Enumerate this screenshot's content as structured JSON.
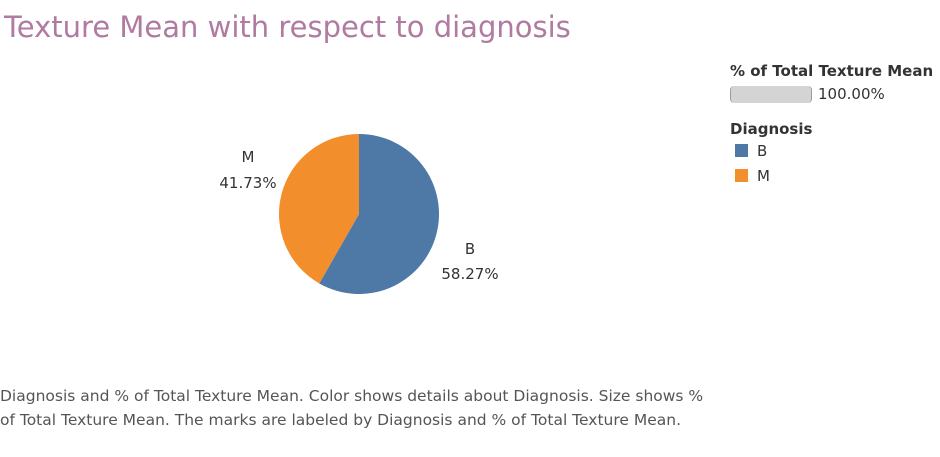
{
  "title": "Texture Mean with respect to diagnosis",
  "chart_data": {
    "type": "pie",
    "title": "Texture Mean with respect to diagnosis",
    "slices": [
      {
        "label": "B",
        "value": 58.27,
        "value_label": "58.27%",
        "color": "#4e79a7"
      },
      {
        "label": "M",
        "value": 41.73,
        "value_label": "41.73%",
        "color": "#f28e2b"
      }
    ],
    "start": "12 o'clock, clockwise"
  },
  "legend": {
    "size_title": "% of Total Texture Mean",
    "size_value": "100.00%",
    "color_title": "Diagnosis",
    "items": [
      {
        "label": "B",
        "color": "#4e79a7"
      },
      {
        "label": "M",
        "color": "#f28e2b"
      }
    ]
  },
  "caption": "Diagnosis and % of Total Texture Mean.  Color shows details about Diagnosis.  Size shows % of Total Texture Mean.  The marks are labeled by Diagnosis and % of Total Texture Mean."
}
